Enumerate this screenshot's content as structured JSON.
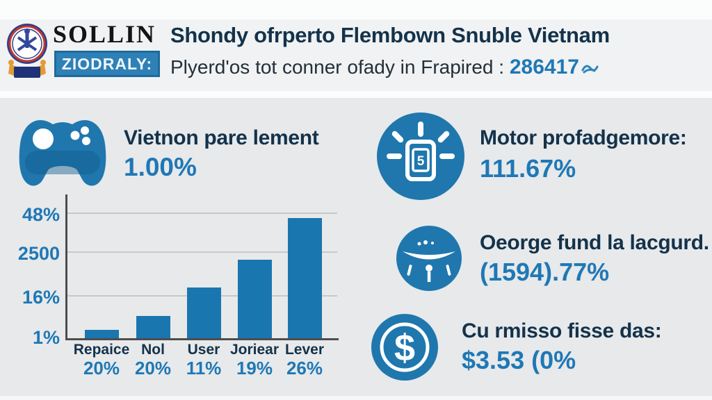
{
  "colors": {
    "accent_blue": "#1f77ae",
    "accent_text_blue": "#1f78b5",
    "navy_text": "#14324a",
    "background": "#e7e9eb",
    "header_background": "#f0f2f3",
    "gridline": "#c6c8ca",
    "tagline_box": "#2e81b6"
  },
  "brand": {
    "name": "SOLLIN",
    "tagline": "ZIODRALY:"
  },
  "header": {
    "title": "Shondy ofrperto Flembown Snuble Vietnam",
    "subtitle": "Plyerd'os tot conner ofady in Frapired :",
    "highlight_value": "286417"
  },
  "left_stat": {
    "label": "Vietnon pare lement",
    "value": "1.00%"
  },
  "chart_data": {
    "type": "bar",
    "categories": [
      "Repaice",
      "Nol",
      "User",
      "Joriear",
      "Lever"
    ],
    "category_values": [
      "20%",
      "20%",
      "11%",
      "19%",
      "26%"
    ],
    "values_rel": [
      7,
      18,
      41,
      64,
      98
    ],
    "y_tick_labels": [
      "48%",
      "2500",
      "16%",
      "1%"
    ],
    "title": "",
    "xlabel": "",
    "ylabel": "",
    "grid": true,
    "legend": false,
    "bar_color": "#1a76af"
  },
  "right_stats": [
    {
      "icon": "shining-device-icon",
      "label": "Motor profadgemore:",
      "value": "111.67%"
    },
    {
      "icon": "rider-icon",
      "label": "Oeorge fund la lacgurd.",
      "value": "(1594).77%"
    },
    {
      "icon": "dollar-coin-icon",
      "label": "Cu rmisso fisse das:",
      "value": "$3.53 (0%"
    }
  ]
}
